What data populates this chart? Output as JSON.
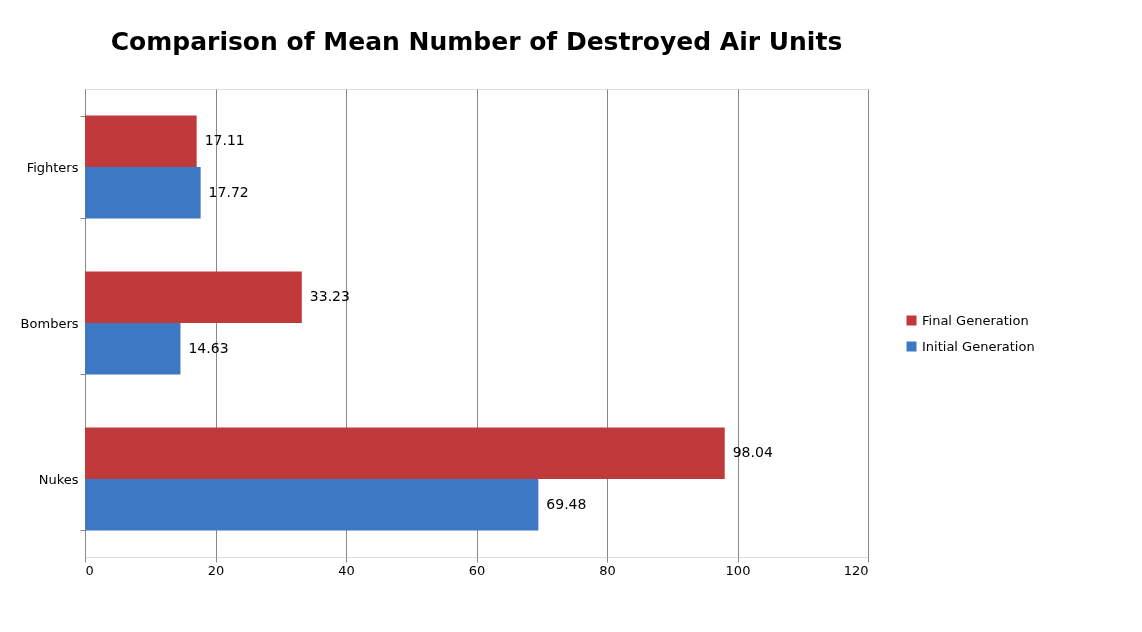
{
  "chart_data": {
    "type": "bar",
    "orientation": "horizontal",
    "title": "Comparison of Mean Number of Destroyed Air Units",
    "categories": [
      "Fighters",
      "Bombers",
      "Nukes"
    ],
    "series": [
      {
        "name": "Final Generation",
        "color": "#c0393b",
        "values": [
          17.11,
          33.23,
          98.04
        ]
      },
      {
        "name": "Initial Generation",
        "color": "#3d78c4",
        "values": [
          17.72,
          14.63,
          69.48
        ]
      }
    ],
    "xlim": [
      0,
      120
    ],
    "xticks": [
      0,
      20,
      40,
      60,
      80,
      100,
      120
    ],
    "grid": "x",
    "legend": "right",
    "data_labels": true
  }
}
